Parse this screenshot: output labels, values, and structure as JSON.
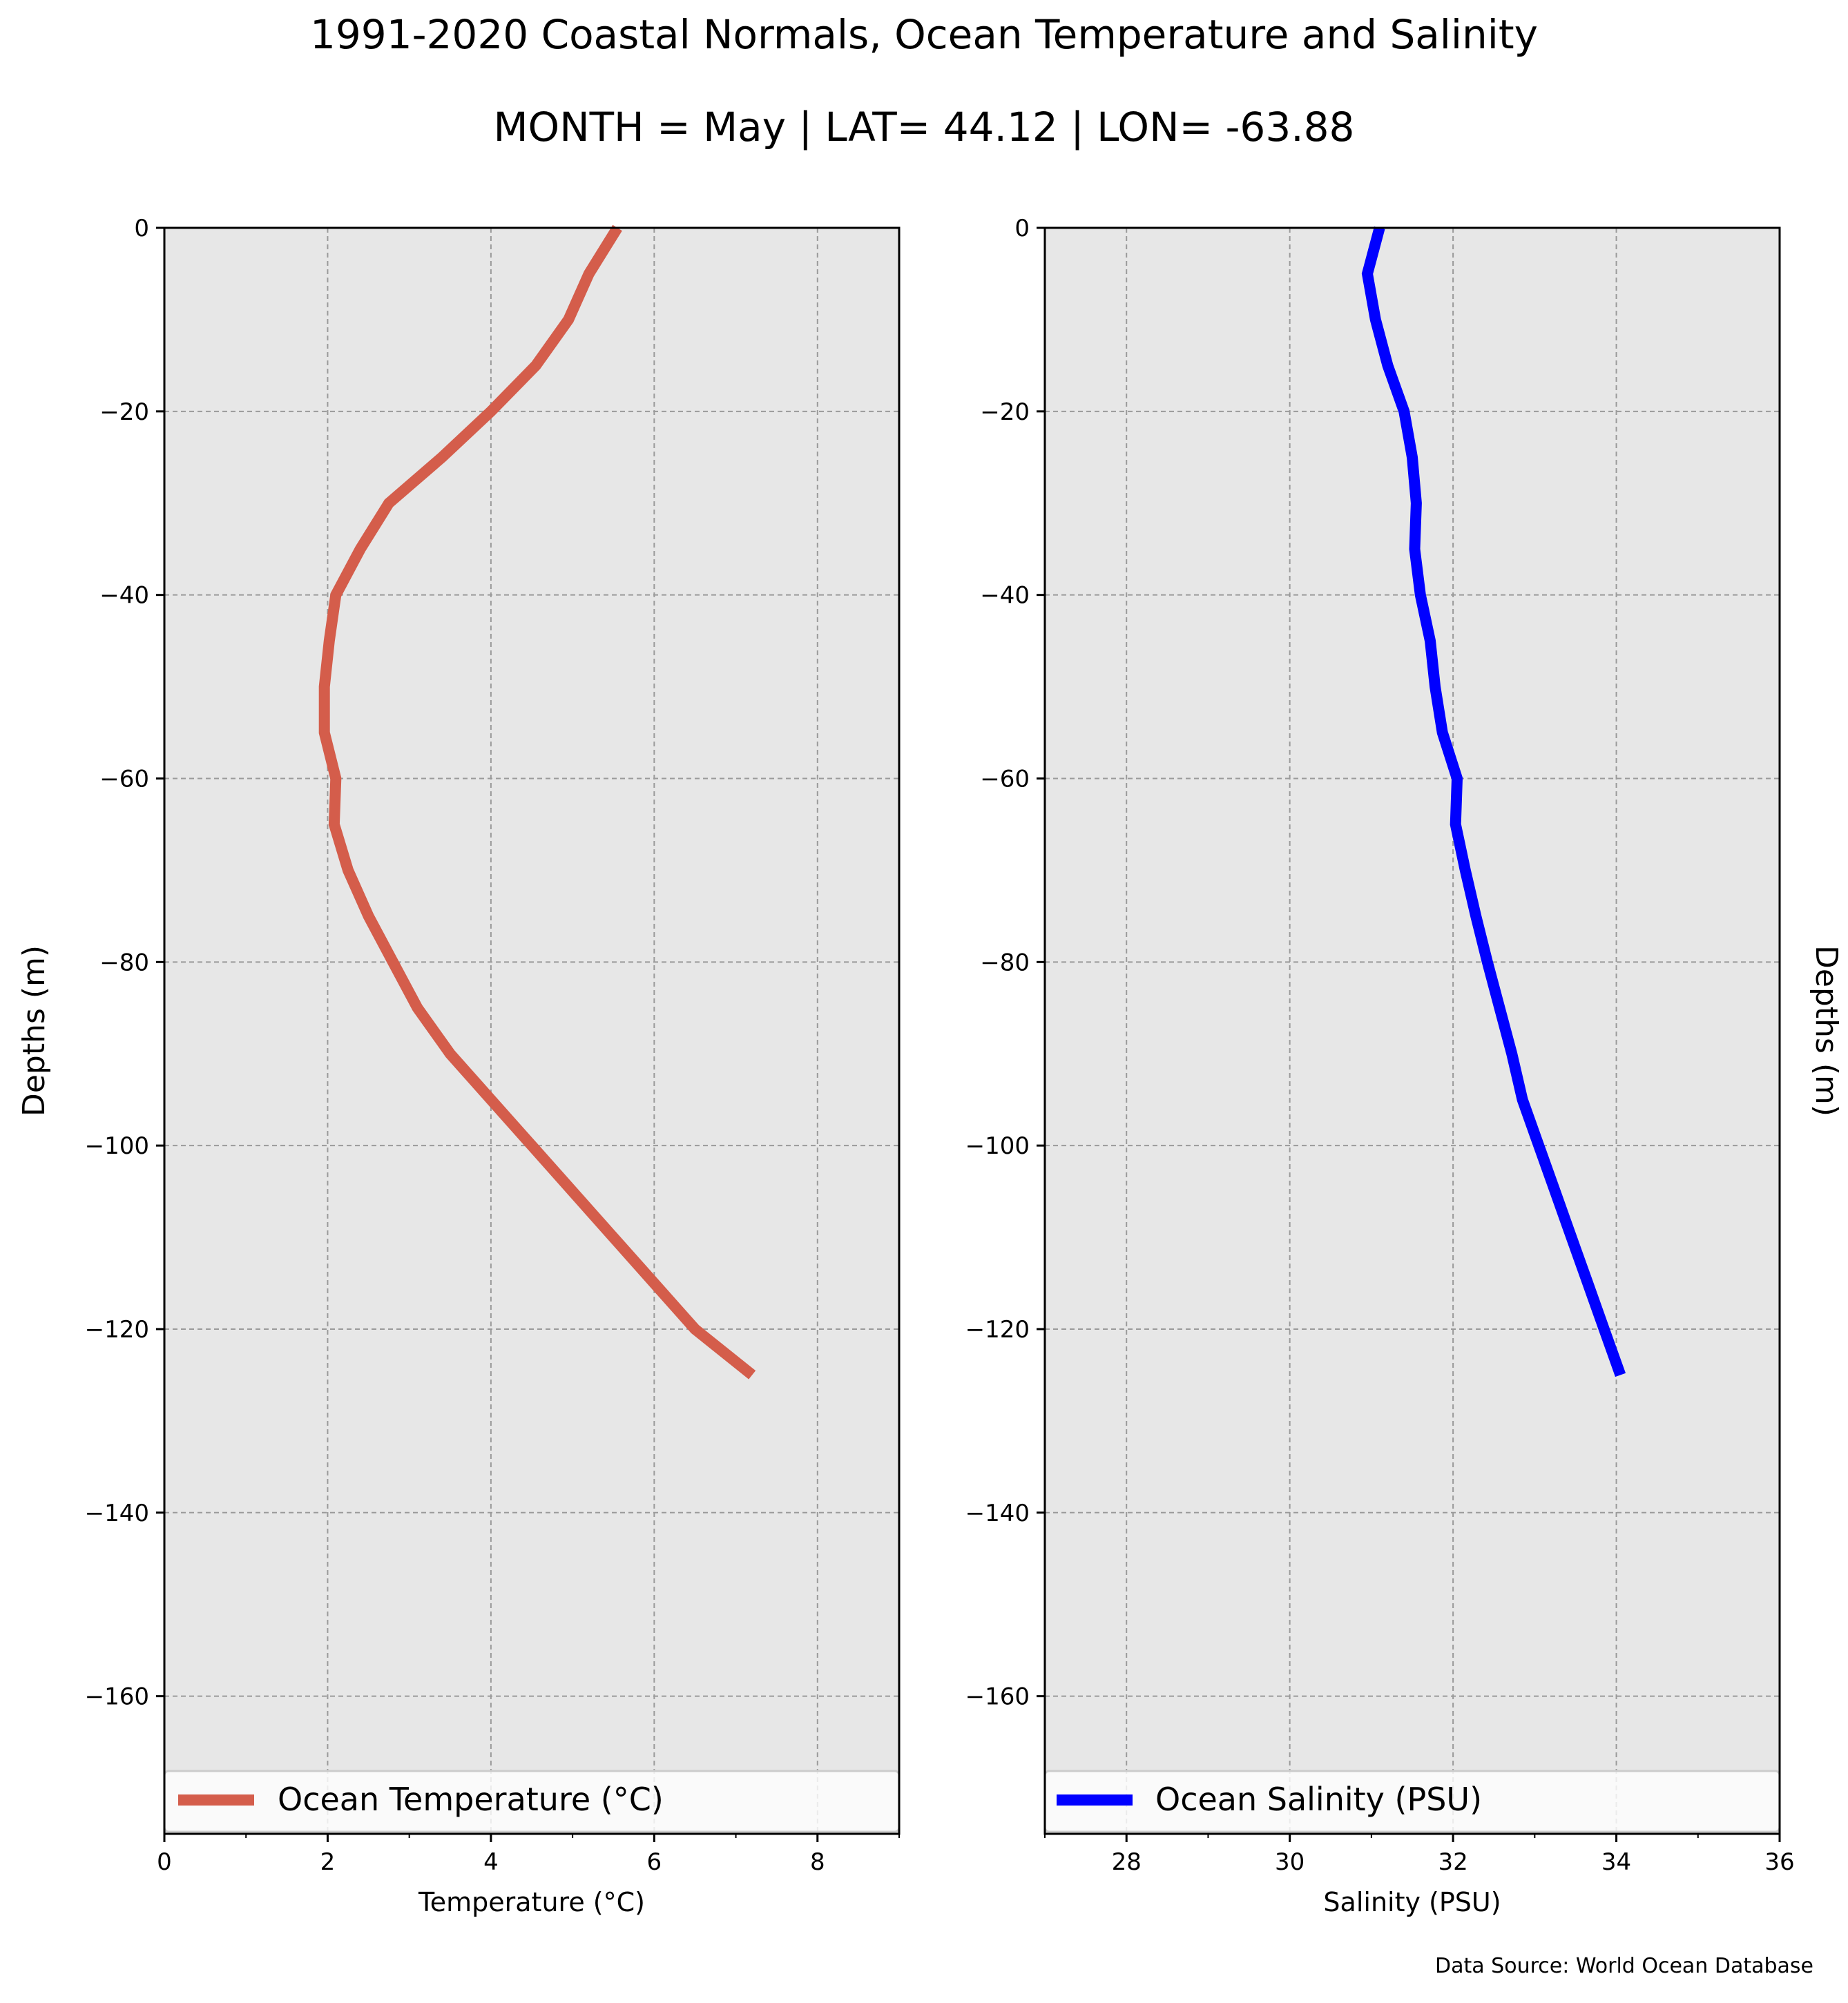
{
  "title": "1991-2020 Coastal Normals, Ocean Temperature and Salinity",
  "subtitle": "MONTH = May | LAT= 44.12 | LON= -63.88",
  "source_note": "Data Source: World Ocean Database",
  "chart_data": [
    {
      "type": "line",
      "xlabel": "Temperature (°C)",
      "ylabel": "Depths (m)",
      "xlim": [
        0,
        9
      ],
      "ylim": [
        -175,
        0
      ],
      "xticks": [
        0,
        2,
        4,
        6,
        8
      ],
      "yticks": [
        0,
        -20,
        -40,
        -60,
        -80,
        -100,
        -120,
        -140,
        -160
      ],
      "grid": true,
      "legend_position": "bottom",
      "series": [
        {
          "name": "Ocean Temperature (°C)",
          "color": "#d45d4b",
          "x": [
            5.55,
            5.2,
            4.95,
            4.55,
            4.0,
            3.4,
            2.75,
            2.4,
            2.1,
            2.02,
            1.96,
            1.96,
            2.1,
            2.08,
            2.25,
            2.5,
            2.8,
            3.1,
            3.5,
            4.0,
            4.5,
            5.0,
            5.5,
            6.0,
            6.5,
            7.2
          ],
          "y": [
            0,
            -5,
            -10,
            -15,
            -20,
            -25,
            -30,
            -35,
            -40,
            -45,
            -50,
            -55,
            -60,
            -65,
            -70,
            -75,
            -80,
            -85,
            -90,
            -95,
            -100,
            -105,
            -110,
            -115,
            -120,
            -125
          ]
        }
      ]
    },
    {
      "type": "line",
      "xlabel": "Salinity (PSU)",
      "ylabel": "Depths (m)",
      "xlim": [
        27,
        36
      ],
      "ylim": [
        -175,
        0
      ],
      "xticks": [
        28,
        30,
        32,
        34,
        36
      ],
      "yticks": [
        0,
        -20,
        -40,
        -60,
        -80,
        -100,
        -120,
        -140,
        -160
      ],
      "grid": true,
      "legend_position": "bottom",
      "series": [
        {
          "name": "Ocean Salinity (PSU)",
          "color": "#0000ff",
          "x": [
            31.1,
            30.95,
            31.05,
            31.2,
            31.4,
            31.5,
            31.55,
            31.53,
            31.6,
            31.72,
            31.78,
            31.87,
            32.05,
            32.03,
            32.15,
            32.28,
            32.42,
            32.57,
            32.72,
            32.85,
            33.05,
            33.25,
            33.45,
            33.65,
            33.85,
            34.05
          ],
          "y": [
            0,
            -5,
            -10,
            -15,
            -20,
            -25,
            -30,
            -35,
            -40,
            -45,
            -50,
            -55,
            -60,
            -65,
            -70,
            -75,
            -80,
            -85,
            -90,
            -95,
            -100,
            -105,
            -110,
            -115,
            -120,
            -125
          ]
        }
      ]
    }
  ]
}
